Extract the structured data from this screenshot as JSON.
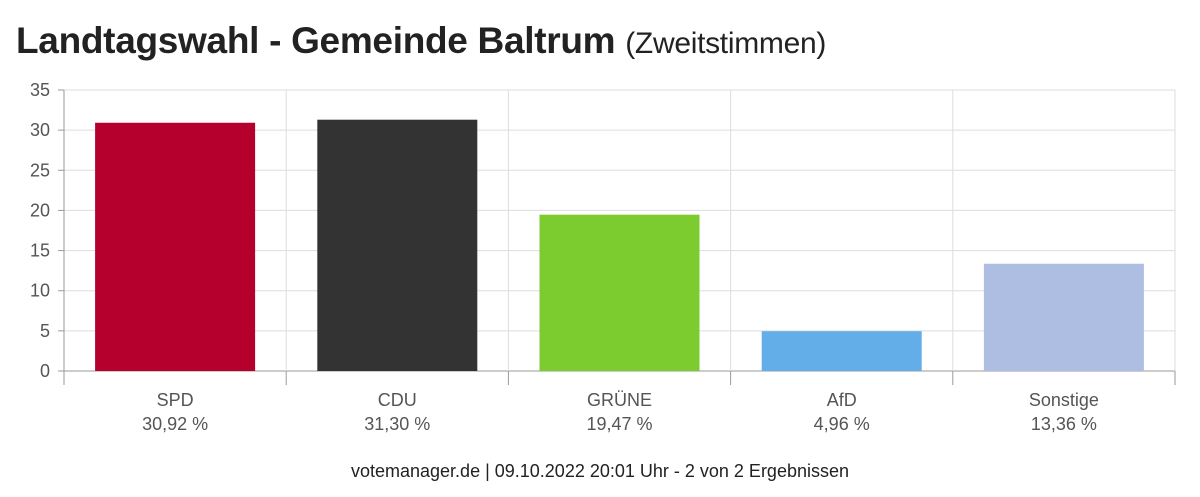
{
  "title": "Landtagswahl - Gemeinde Baltrum",
  "subtitle": "(Zweitstimmen)",
  "footer": "votemanager.de | 09.10.2022 20:01 Uhr - 2 von 2 Ergebnissen",
  "chart_data": {
    "type": "bar",
    "categories": [
      "SPD",
      "CDU",
      "GRÜNE",
      "AfD",
      "Sonstige"
    ],
    "values": [
      30.92,
      31.3,
      19.47,
      4.96,
      13.36
    ],
    "value_labels": [
      "30,92 %",
      "31,30 %",
      "19,47 %",
      "4,96 %",
      "13,36 %"
    ],
    "colors": [
      "#b5002d",
      "#333333",
      "#7ccb2f",
      "#63aee8",
      "#aebee3"
    ],
    "ylim": [
      0,
      35
    ],
    "yticks": [
      0,
      5,
      10,
      15,
      20,
      25,
      30,
      35
    ],
    "grid": true,
    "legend": "none"
  }
}
